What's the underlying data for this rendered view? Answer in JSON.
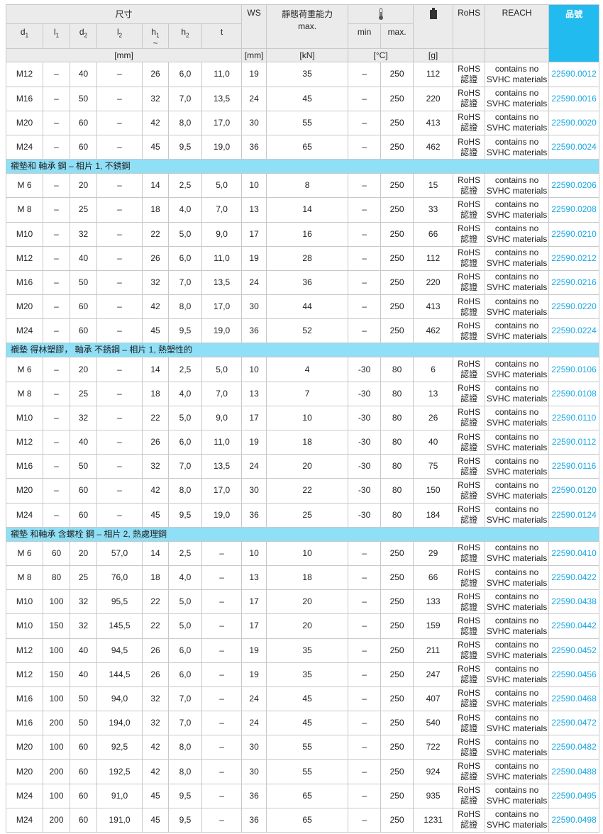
{
  "header": {
    "dimensions": "尺寸",
    "ws": "WS",
    "load": "靜態荷重能力",
    "load_sub": "max.",
    "temp_min": "min",
    "temp_max": "max.",
    "rohs": "RoHS",
    "reach": "REACH",
    "part": "品號",
    "cols": [
      {
        "b": "d",
        "s": "1"
      },
      {
        "b": "l",
        "s": "1"
      },
      {
        "b": "d",
        "s": "2"
      },
      {
        "b": "l",
        "s": "2"
      },
      {
        "b": "h",
        "s": "1",
        "extra": "~"
      },
      {
        "b": "h",
        "s": "2"
      },
      {
        "b": "t",
        "s": ""
      }
    ],
    "units": {
      "dim": "[mm]",
      "ws": "[mm]",
      "load": "[kN]",
      "temp": "[°C]",
      "weight": "[g]"
    },
    "icons": {
      "temp": "thermometer-icon",
      "weight": "weight-icon"
    },
    "accent": "#22bbef",
    "section_color": "#8fdff6",
    "link_color": "#1aa9e6"
  },
  "rohs_text": [
    "RoHS",
    "認證"
  ],
  "reach_text": [
    "contains no",
    "SVHC materials"
  ],
  "groups": [
    {
      "title": null,
      "rows": [
        [
          "M12",
          "–",
          "40",
          "–",
          "26",
          "6,0",
          "11,0",
          "19",
          "35",
          "–",
          "250",
          "112",
          "22590.0012"
        ],
        [
          "M16",
          "–",
          "50",
          "–",
          "32",
          "7,0",
          "13,5",
          "24",
          "45",
          "–",
          "250",
          "220",
          "22590.0016"
        ],
        [
          "M20",
          "–",
          "60",
          "–",
          "42",
          "8,0",
          "17,0",
          "30",
          "55",
          "–",
          "250",
          "413",
          "22590.0020"
        ],
        [
          "M24",
          "–",
          "60",
          "–",
          "45",
          "9,5",
          "19,0",
          "36",
          "65",
          "–",
          "250",
          "462",
          "22590.0024"
        ]
      ]
    },
    {
      "title": "襯墊和 軸承 鋼 – 相片 1, 不銹鋼",
      "rows": [
        [
          "M 6",
          "–",
          "20",
          "–",
          "14",
          "2,5",
          "5,0",
          "10",
          "8",
          "–",
          "250",
          "15",
          "22590.0206"
        ],
        [
          "M 8",
          "–",
          "25",
          "–",
          "18",
          "4,0",
          "7,0",
          "13",
          "14",
          "–",
          "250",
          "33",
          "22590.0208"
        ],
        [
          "M10",
          "–",
          "32",
          "–",
          "22",
          "5,0",
          "9,0",
          "17",
          "16",
          "–",
          "250",
          "66",
          "22590.0210"
        ],
        [
          "M12",
          "–",
          "40",
          "–",
          "26",
          "6,0",
          "11,0",
          "19",
          "28",
          "–",
          "250",
          "112",
          "22590.0212"
        ],
        [
          "M16",
          "–",
          "50",
          "–",
          "32",
          "7,0",
          "13,5",
          "24",
          "36",
          "–",
          "250",
          "220",
          "22590.0216"
        ],
        [
          "M20",
          "–",
          "60",
          "–",
          "42",
          "8,0",
          "17,0",
          "30",
          "44",
          "–",
          "250",
          "413",
          "22590.0220"
        ],
        [
          "M24",
          "–",
          "60",
          "–",
          "45",
          "9,5",
          "19,0",
          "36",
          "52",
          "–",
          "250",
          "462",
          "22590.0224"
        ]
      ]
    },
    {
      "title": "襯墊 得林塑膠， 軸承 不銹鋼 – 相片 1, 熱塑性的",
      "rows": [
        [
          "M 6",
          "–",
          "20",
          "–",
          "14",
          "2,5",
          "5,0",
          "10",
          "4",
          "-30",
          "80",
          "6",
          "22590.0106"
        ],
        [
          "M 8",
          "–",
          "25",
          "–",
          "18",
          "4,0",
          "7,0",
          "13",
          "7",
          "-30",
          "80",
          "13",
          "22590.0108"
        ],
        [
          "M10",
          "–",
          "32",
          "–",
          "22",
          "5,0",
          "9,0",
          "17",
          "10",
          "-30",
          "80",
          "26",
          "22590.0110"
        ],
        [
          "M12",
          "–",
          "40",
          "–",
          "26",
          "6,0",
          "11,0",
          "19",
          "18",
          "-30",
          "80",
          "40",
          "22590.0112"
        ],
        [
          "M16",
          "–",
          "50",
          "–",
          "32",
          "7,0",
          "13,5",
          "24",
          "20",
          "-30",
          "80",
          "75",
          "22590.0116"
        ],
        [
          "M20",
          "–",
          "60",
          "–",
          "42",
          "8,0",
          "17,0",
          "30",
          "22",
          "-30",
          "80",
          "150",
          "22590.0120"
        ],
        [
          "M24",
          "–",
          "60",
          "–",
          "45",
          "9,5",
          "19,0",
          "36",
          "25",
          "-30",
          "80",
          "184",
          "22590.0124"
        ]
      ]
    },
    {
      "title": "襯墊 和軸承 含螺栓 鋼 – 相片 2, 熱處理鋼",
      "rows": [
        [
          "M 6",
          "60",
          "20",
          "57,0",
          "14",
          "2,5",
          "–",
          "10",
          "10",
          "–",
          "250",
          "29",
          "22590.0410"
        ],
        [
          "M 8",
          "80",
          "25",
          "76,0",
          "18",
          "4,0",
          "–",
          "13",
          "18",
          "–",
          "250",
          "66",
          "22590.0422"
        ],
        [
          "M10",
          "100",
          "32",
          "95,5",
          "22",
          "5,0",
          "–",
          "17",
          "20",
          "–",
          "250",
          "133",
          "22590.0438"
        ],
        [
          "M10",
          "150",
          "32",
          "145,5",
          "22",
          "5,0",
          "–",
          "17",
          "20",
          "–",
          "250",
          "159",
          "22590.0442"
        ],
        [
          "M12",
          "100",
          "40",
          "94,5",
          "26",
          "6,0",
          "–",
          "19",
          "35",
          "–",
          "250",
          "211",
          "22590.0452"
        ],
        [
          "M12",
          "150",
          "40",
          "144,5",
          "26",
          "6,0",
          "–",
          "19",
          "35",
          "–",
          "250",
          "247",
          "22590.0456"
        ],
        [
          "M16",
          "100",
          "50",
          "94,0",
          "32",
          "7,0",
          "–",
          "24",
          "45",
          "–",
          "250",
          "407",
          "22590.0468"
        ],
        [
          "M16",
          "200",
          "50",
          "194,0",
          "32",
          "7,0",
          "–",
          "24",
          "45",
          "–",
          "250",
          "540",
          "22590.0472"
        ],
        [
          "M20",
          "100",
          "60",
          "92,5",
          "42",
          "8,0",
          "–",
          "30",
          "55",
          "–",
          "250",
          "722",
          "22590.0482"
        ],
        [
          "M20",
          "200",
          "60",
          "192,5",
          "42",
          "8,0",
          "–",
          "30",
          "55",
          "–",
          "250",
          "924",
          "22590.0488"
        ],
        [
          "M24",
          "100",
          "60",
          "91,0",
          "45",
          "9,5",
          "–",
          "36",
          "65",
          "–",
          "250",
          "935",
          "22590.0495"
        ],
        [
          "M24",
          "200",
          "60",
          "191,0",
          "45",
          "9,5",
          "–",
          "36",
          "65",
          "–",
          "250",
          "1231",
          "22590.0498"
        ]
      ]
    }
  ]
}
